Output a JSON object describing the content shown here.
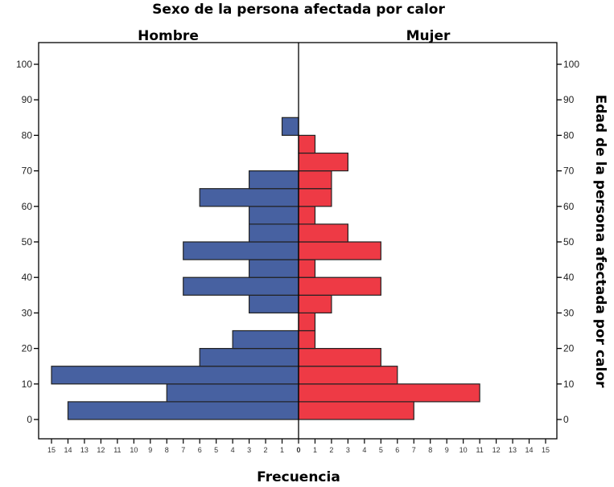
{
  "chart_data": {
    "type": "bar",
    "orientation": "horizontal-pyramid",
    "title": "Sexo de la persona afectada por calor",
    "xlabel": "Frecuencia",
    "ylabel": "Edad de la persona afectada por calor",
    "panel_labels": [
      "Hombre",
      "Mujer"
    ],
    "age_bins_start": [
      0,
      5,
      10,
      15,
      20,
      25,
      30,
      35,
      40,
      45,
      50,
      55,
      60,
      65,
      70,
      75,
      80
    ],
    "bin_width": 5,
    "series": [
      {
        "name": "Hombre",
        "color": "#4761A1",
        "values": [
          14,
          8,
          15,
          6,
          4,
          0,
          3,
          7,
          3,
          7,
          3,
          3,
          6,
          3,
          0,
          0,
          1
        ]
      },
      {
        "name": "Mujer",
        "color": "#EE3A45",
        "values": [
          7,
          11,
          6,
          5,
          1,
          1,
          2,
          5,
          1,
          5,
          3,
          1,
          2,
          2,
          3,
          1,
          0
        ]
      }
    ],
    "xlim": [
      0,
      15
    ],
    "ylim": [
      -5,
      105
    ],
    "x_ticks": [
      0,
      1,
      2,
      3,
      4,
      5,
      6,
      7,
      8,
      9,
      10,
      11,
      12,
      13,
      14,
      15
    ],
    "y_ticks": [
      0,
      10,
      20,
      30,
      40,
      50,
      60,
      70,
      80,
      90,
      100
    ],
    "grid": false
  }
}
